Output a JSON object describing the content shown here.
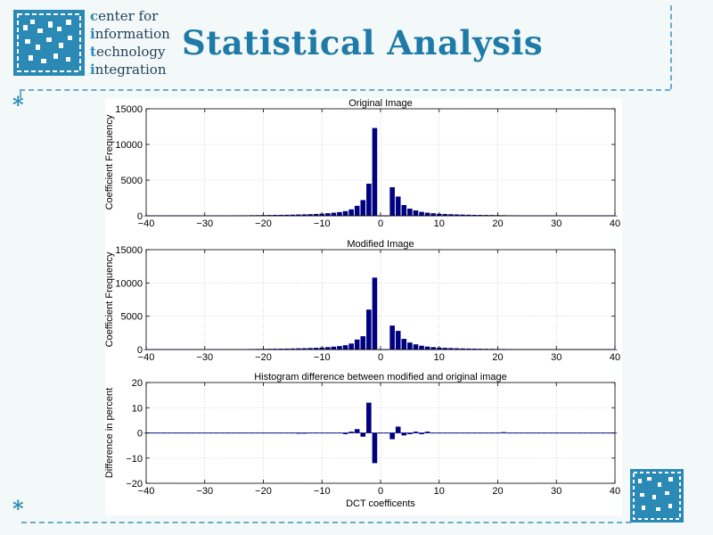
{
  "header": {
    "title": "Statistical Analysis",
    "org_lines": [
      {
        "first": "c",
        "rest": "enter for"
      },
      {
        "first": "i",
        "rest": "nformation"
      },
      {
        "first": "t",
        "rest": "echnology"
      },
      {
        "first": "i",
        "rest": "ntegration"
      }
    ],
    "decor_star": "*"
  },
  "colors": {
    "bar": "#000080",
    "accent": "#1e7aa6",
    "dash": "#6aaccc",
    "logo": "#2a8ab5"
  },
  "chart_data": [
    {
      "type": "bar",
      "title": "Original Image",
      "xlabel": "",
      "ylabel": "Coefficient Frequency",
      "xlim": [
        -40,
        40
      ],
      "ylim": [
        0,
        15000
      ],
      "xticks": [
        -40,
        -30,
        -20,
        -10,
        0,
        10,
        20,
        30,
        40
      ],
      "yticks": [
        0,
        5000,
        10000,
        15000
      ],
      "grid": true,
      "x": [
        -40,
        -39,
        -38,
        -37,
        -36,
        -35,
        -34,
        -33,
        -32,
        -31,
        -30,
        -29,
        -28,
        -27,
        -26,
        -25,
        -24,
        -23,
        -22,
        -21,
        -20,
        -19,
        -18,
        -17,
        -16,
        -15,
        -14,
        -13,
        -12,
        -11,
        -10,
        -9,
        -8,
        -7,
        -6,
        -5,
        -4,
        -3,
        -2,
        -1,
        0,
        1,
        2,
        3,
        4,
        5,
        6,
        7,
        8,
        9,
        10,
        11,
        12,
        13,
        14,
        15,
        16,
        17,
        18,
        19,
        20,
        21,
        22,
        23,
        24,
        25,
        26,
        27,
        28,
        29,
        30,
        31,
        32,
        33,
        34,
        35,
        36,
        37,
        38,
        39,
        40
      ],
      "values": [
        20,
        20,
        25,
        25,
        30,
        30,
        30,
        35,
        35,
        40,
        40,
        45,
        50,
        50,
        55,
        60,
        65,
        70,
        80,
        90,
        100,
        110,
        120,
        130,
        140,
        160,
        180,
        200,
        230,
        260,
        300,
        360,
        430,
        520,
        650,
        900,
        1400,
        2200,
        4500,
        12300,
        0,
        0,
        4000,
        2700,
        1500,
        1000,
        750,
        550,
        430,
        350,
        290,
        250,
        220,
        190,
        170,
        150,
        130,
        120,
        110,
        100,
        90,
        80,
        70,
        65,
        60,
        55,
        50,
        45,
        40,
        35,
        30,
        30,
        25,
        25,
        20,
        20,
        20,
        15,
        15,
        15,
        15
      ]
    },
    {
      "type": "bar",
      "title": "Modified Image",
      "xlabel": "",
      "ylabel": "Coefficient Frequency",
      "xlim": [
        -40,
        40
      ],
      "ylim": [
        0,
        15000
      ],
      "xticks": [
        -40,
        -30,
        -20,
        -10,
        0,
        10,
        20,
        30,
        40
      ],
      "yticks": [
        0,
        5000,
        10000,
        15000
      ],
      "grid": true,
      "x": [
        -40,
        -39,
        -38,
        -37,
        -36,
        -35,
        -34,
        -33,
        -32,
        -31,
        -30,
        -29,
        -28,
        -27,
        -26,
        -25,
        -24,
        -23,
        -22,
        -21,
        -20,
        -19,
        -18,
        -17,
        -16,
        -15,
        -14,
        -13,
        -12,
        -11,
        -10,
        -9,
        -8,
        -7,
        -6,
        -5,
        -4,
        -3,
        -2,
        -1,
        0,
        1,
        2,
        3,
        4,
        5,
        6,
        7,
        8,
        9,
        10,
        11,
        12,
        13,
        14,
        15,
        16,
        17,
        18,
        19,
        20,
        21,
        22,
        23,
        24,
        25,
        26,
        27,
        28,
        29,
        30,
        31,
        32,
        33,
        34,
        35,
        36,
        37,
        38,
        39,
        40
      ],
      "values": [
        20,
        20,
        25,
        25,
        30,
        30,
        30,
        35,
        35,
        40,
        40,
        45,
        50,
        50,
        55,
        60,
        65,
        70,
        80,
        90,
        100,
        110,
        120,
        130,
        140,
        160,
        180,
        200,
        230,
        260,
        300,
        360,
        430,
        520,
        650,
        900,
        1500,
        2000,
        6000,
        10800,
        0,
        0,
        3600,
        2800,
        1600,
        1050,
        780,
        570,
        440,
        360,
        300,
        255,
        225,
        195,
        170,
        150,
        135,
        120,
        110,
        100,
        90,
        80,
        70,
        65,
        60,
        55,
        50,
        45,
        40,
        35,
        30,
        30,
        25,
        25,
        20,
        20,
        20,
        15,
        15,
        15,
        15
      ]
    },
    {
      "type": "bar",
      "title": "Histogram difference between modified and original image",
      "xlabel": "DCT coefficents",
      "ylabel": "Difference in percent",
      "xlim": [
        -40,
        40
      ],
      "ylim": [
        -20,
        20
      ],
      "xticks": [
        -40,
        -30,
        -20,
        -10,
        0,
        10,
        20,
        30,
        40
      ],
      "yticks": [
        -20,
        -10,
        0,
        10,
        20
      ],
      "grid": true,
      "x": [
        -40,
        -39,
        -38,
        -37,
        -36,
        -35,
        -34,
        -33,
        -32,
        -31,
        -30,
        -29,
        -28,
        -27,
        -26,
        -25,
        -24,
        -23,
        -22,
        -21,
        -20,
        -19,
        -18,
        -17,
        -16,
        -15,
        -14,
        -13,
        -12,
        -11,
        -10,
        -9,
        -8,
        -7,
        -6,
        -5,
        -4,
        -3,
        -2,
        -1,
        0,
        1,
        2,
        3,
        4,
        5,
        6,
        7,
        8,
        9,
        10,
        11,
        12,
        13,
        14,
        15,
        16,
        17,
        18,
        19,
        20,
        21,
        22,
        23,
        24,
        25,
        26,
        27,
        28,
        29,
        30,
        31,
        32,
        33,
        34,
        35,
        36,
        37,
        38,
        39,
        40
      ],
      "values": [
        0,
        0,
        0,
        0,
        0,
        0,
        0,
        0,
        0,
        0,
        0,
        0,
        0,
        0,
        0,
        0,
        0,
        0,
        0,
        0,
        0,
        0,
        0,
        0,
        0,
        0,
        -0.3,
        -0.3,
        0,
        0,
        0,
        0,
        0,
        0,
        -0.5,
        0.5,
        1.5,
        -1.5,
        12,
        -12,
        0,
        0,
        -2.5,
        2.5,
        -1,
        -0.5,
        0.5,
        -0.5,
        0.5,
        0,
        0,
        0,
        0,
        0,
        0,
        0,
        0,
        0,
        0,
        0,
        0,
        0.3,
        0,
        0,
        0,
        0,
        0,
        0,
        0,
        0,
        0,
        0,
        0,
        0,
        0,
        0,
        0,
        0,
        0,
        0,
        0
      ]
    }
  ]
}
